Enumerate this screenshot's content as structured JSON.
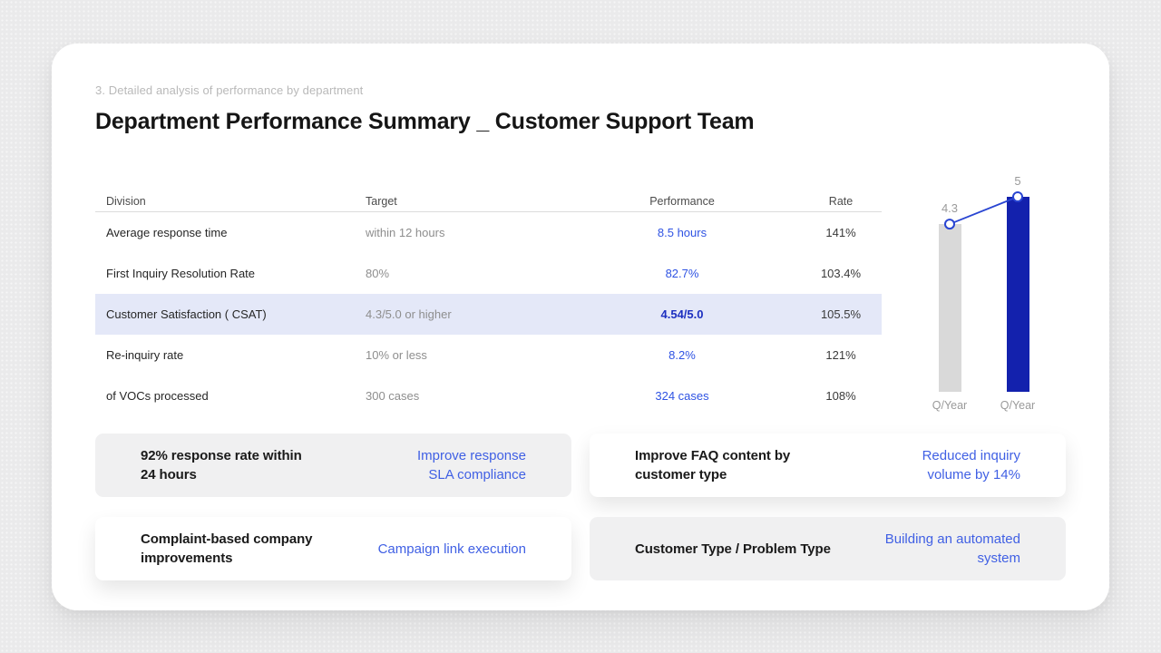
{
  "page": {
    "eyebrow": "3. Detailed analysis of performance by department",
    "title": "Department Performance Summary _ Customer Support Team"
  },
  "table": {
    "columns": {
      "division": "Division",
      "target": "Target",
      "performance": "Performance",
      "rate": "Rate"
    },
    "rows": [
      {
        "division": "Average response time",
        "target": "within 12 hours",
        "performance": "8.5 hours",
        "rate": "141%"
      },
      {
        "division": "First Inquiry Resolution Rate",
        "target": "80%",
        "performance": "82.7%",
        "rate": "103.4%"
      },
      {
        "division": "Customer Satisfaction ( CSAT)",
        "target": "4.3/5.0 or higher",
        "performance": "4.54/5.0",
        "rate": "105.5%"
      },
      {
        "division": "Re-inquiry rate",
        "target": "10% or less",
        "performance": "8.2%",
        "rate": "121%"
      },
      {
        "division": "of VOCs processed",
        "target": "300 cases",
        "performance": "324 cases",
        "rate": "108%"
      }
    ],
    "highlighted_row_index": 2
  },
  "chart_data": {
    "type": "bar",
    "title": "",
    "categories": [
      "Q/Year",
      "Q/Year"
    ],
    "values": [
      4.3,
      5
    ],
    "value_labels": [
      "4.3",
      "5"
    ],
    "ylim": [
      0,
      5
    ],
    "grid": false,
    "legend": false,
    "bar_colors": [
      "#d9d9d9",
      "#1321ad"
    ],
    "overlay": "line connecting bar tops with circular white markers",
    "marker_line_color": "#2945d2",
    "axis_label_color": "#9a9a9a"
  },
  "cards": [
    {
      "text": "92% response rate within\n24 hours",
      "action": "Improve response\nSLA compliance",
      "style": "gray"
    },
    {
      "text": "Improve FAQ content by\ncustomer type",
      "action": "Reduced inquiry\nvolume by 14%",
      "style": "white"
    },
    {
      "text": "Complaint-based company\nimprovements",
      "action": "Campaign link execution",
      "style": "white"
    },
    {
      "text": "Customer Type / Problem Type",
      "action": "Building an automated\nsystem",
      "style": "gray"
    }
  ],
  "colors": {
    "page_background": "#eaeaeb",
    "canvas_background": "#ffffff",
    "highlight_row_background": "#e4e8f8",
    "table_accent_blue": "#2f53e3",
    "table_accent_blue_bold": "#1c2fc0",
    "card_action_blue": "#4060e4",
    "bar_gray": "#d9d9d9",
    "bar_blue": "#1321ad"
  }
}
